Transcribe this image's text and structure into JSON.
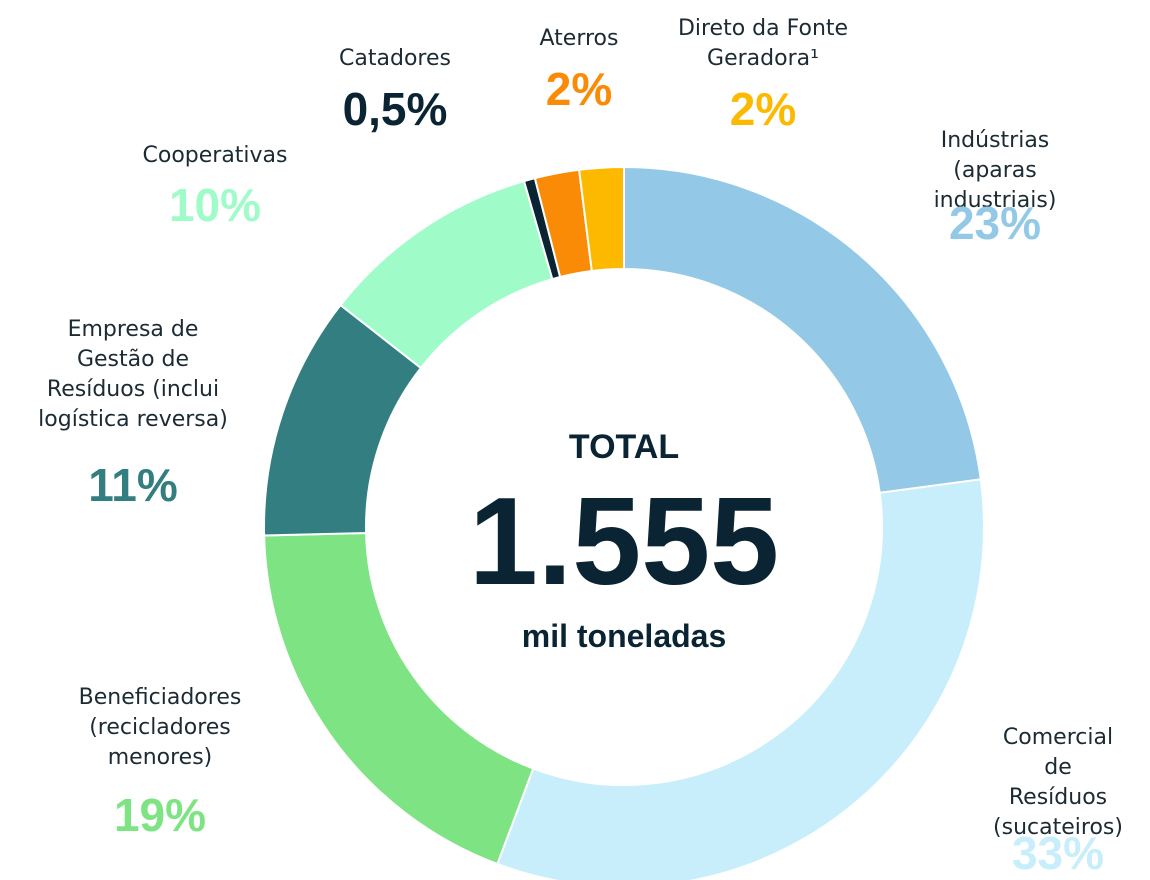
{
  "chart_data": {
    "type": "donut",
    "categories": [
      "Indústrias (aparas\nindustriais)",
      "Comercial de\nResíduos\n(sucateiros)",
      "Beneficiadores\n(recicladores\nmenores)",
      "Empresa de\nGestão de\nResíduos (inclui\nlogística reversa)",
      "Cooperativas",
      "Catadores",
      "Aterros",
      "Direto da Fonte\nGeradora¹"
    ],
    "values": [
      23,
      33,
      19,
      11,
      10,
      0.5,
      2,
      2
    ],
    "value_labels": [
      "23%",
      "33%",
      "19%",
      "11%",
      "10%",
      "0,5%",
      "2%",
      "2%"
    ],
    "colors": [
      "#93c9e6",
      "#c8eefb",
      "#7de383",
      "#337e80",
      "#9ffcc8",
      "#0b2433",
      "#f98b06",
      "#fdb900"
    ],
    "center": {
      "label": "TOTAL",
      "value": "1.555",
      "unit": "mil toneladas"
    }
  }
}
